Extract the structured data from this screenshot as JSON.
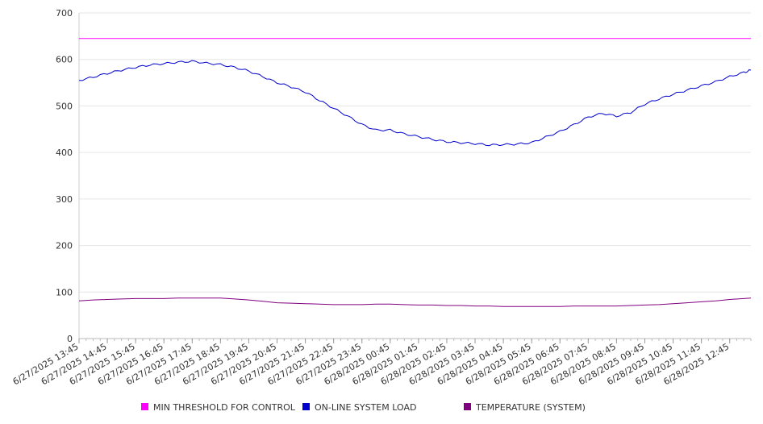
{
  "chart_data": {
    "type": "line",
    "title": "",
    "xlabel": "",
    "ylabel": "",
    "ylim": [
      0,
      700
    ],
    "y_ticks": [
      0,
      100,
      200,
      300,
      400,
      500,
      600,
      700
    ],
    "grid": "horizontal",
    "legend_position": "bottom",
    "x_tick_labels": [
      "6/27/2025 13:45",
      "6/27/2025 14:45",
      "6/27/2025 15:45",
      "6/27/2025 16:45",
      "6/27/2025 17:45",
      "6/27/2025 18:45",
      "6/27/2025 19:45",
      "6/27/2025 20:45",
      "6/27/2025 21:45",
      "6/27/2025 22:45",
      "6/27/2025 23:45",
      "6/28/2025 00:45",
      "6/28/2025 01:45",
      "6/28/2025 02:45",
      "6/28/2025 03:45",
      "6/28/2025 04:45",
      "6/28/2025 05:45",
      "6/28/2025 06:45",
      "6/28/2025 07:45",
      "6/28/2025 08:45",
      "6/28/2025 09:45",
      "6/28/2025 10:45",
      "6/28/2025 11:45",
      "6/28/2025 12:45"
    ],
    "x": [
      "6/27/2025 13:45",
      "6/27/2025 14:15",
      "6/27/2025 14:45",
      "6/27/2025 15:15",
      "6/27/2025 15:45",
      "6/27/2025 16:15",
      "6/27/2025 16:45",
      "6/27/2025 17:15",
      "6/27/2025 17:45",
      "6/27/2025 18:15",
      "6/27/2025 18:45",
      "6/27/2025 19:15",
      "6/27/2025 19:45",
      "6/27/2025 20:15",
      "6/27/2025 20:45",
      "6/27/2025 21:15",
      "6/27/2025 21:45",
      "6/27/2025 22:15",
      "6/27/2025 22:45",
      "6/27/2025 23:15",
      "6/27/2025 23:45",
      "6/28/2025 00:15",
      "6/28/2025 00:45",
      "6/28/2025 01:15",
      "6/28/2025 01:45",
      "6/28/2025 02:15",
      "6/28/2025 02:45",
      "6/28/2025 03:15",
      "6/28/2025 03:45",
      "6/28/2025 04:15",
      "6/28/2025 04:45",
      "6/28/2025 05:15",
      "6/28/2025 05:45",
      "6/28/2025 06:15",
      "6/28/2025 06:45",
      "6/28/2025 07:15",
      "6/28/2025 07:45",
      "6/28/2025 08:15",
      "6/28/2025 08:45",
      "6/28/2025 09:15",
      "6/28/2025 09:45",
      "6/28/2025 10:15",
      "6/28/2025 10:45",
      "6/28/2025 11:15",
      "6/28/2025 11:45",
      "6/28/2025 12:15",
      "6/28/2025 12:45",
      "6/28/2025 13:15",
      "6/28/2025 13:30"
    ],
    "series": [
      {
        "name": "MIN THRESHOLD FOR CONTROL",
        "color": "#ff00ff",
        "values": [
          645,
          645,
          645,
          645,
          645,
          645,
          645,
          645,
          645,
          645,
          645,
          645,
          645,
          645,
          645,
          645,
          645,
          645,
          645,
          645,
          645,
          645,
          645,
          645,
          645,
          645,
          645,
          645,
          645,
          645,
          645,
          645,
          645,
          645,
          645,
          645,
          645,
          645,
          645,
          645,
          645,
          645,
          645,
          645,
          645,
          645,
          645,
          645,
          645
        ]
      },
      {
        "name": "ON-LINE SYSTEM LOAD",
        "color": "#0000cc",
        "values": [
          555,
          562,
          570,
          577,
          583,
          588,
          591,
          594,
          596,
          592,
          589,
          583,
          575,
          563,
          550,
          541,
          530,
          512,
          495,
          478,
          460,
          448,
          448,
          440,
          434,
          428,
          423,
          421,
          419,
          416,
          417,
          418,
          421,
          433,
          445,
          460,
          476,
          484,
          478,
          486,
          504,
          515,
          525,
          534,
          543,
          552,
          563,
          572,
          577
        ]
      },
      {
        "name": "TEMPERATURE (SYSTEM)",
        "color": "#800080",
        "values": [
          81,
          83,
          84,
          85,
          86,
          86,
          86,
          87,
          87,
          87,
          87,
          85,
          83,
          80,
          77,
          76,
          75,
          74,
          73,
          73,
          73,
          74,
          74,
          73,
          72,
          72,
          71,
          71,
          70,
          70,
          69,
          69,
          69,
          69,
          69,
          70,
          70,
          70,
          70,
          71,
          72,
          73,
          75,
          77,
          79,
          81,
          84,
          86,
          87
        ]
      }
    ]
  }
}
